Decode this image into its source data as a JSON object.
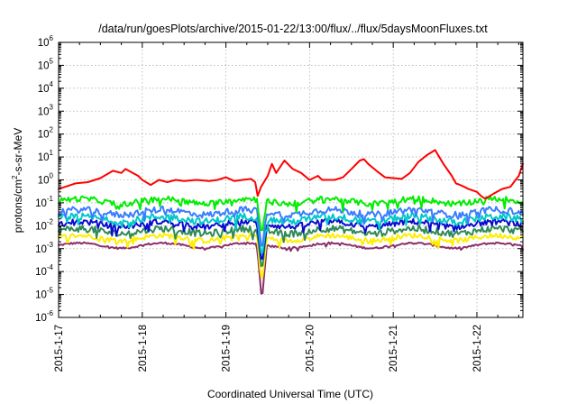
{
  "chart_data": {
    "type": "line",
    "title": "/data/run/goesPlots/archive/2015-01-22/13:00/flux/../flux/5daysMoonFluxes.txt",
    "xlabel": "Coordinated Universal Time (UTC)",
    "ylabel": "protons/cm2-s-sr-MeV",
    "ylabel_parts": {
      "base": "protons/cm",
      "exp": "2",
      "rest": "-s-sr-MeV"
    },
    "yscale": "log",
    "ylim_exponents": [
      -6,
      6
    ],
    "y_tick_exponents": [
      -6,
      -5,
      -4,
      -3,
      -2,
      -1,
      0,
      1,
      2,
      3,
      4,
      5,
      6
    ],
    "y_tick_base": "10",
    "x_tick_labels": [
      "2015-1-17",
      "2015-1-18",
      "2015-1-19",
      "2015-1-20",
      "2015-1-21",
      "2015-1-22"
    ],
    "x_tick_days": [
      0,
      1,
      2,
      3,
      4,
      5
    ],
    "xlim_days": [
      0,
      5.55
    ],
    "grid": true,
    "legend": "none",
    "series": [
      {
        "color": "#ff0000",
        "x": [
          0.0,
          0.2,
          0.35,
          0.5,
          0.65,
          0.75,
          0.8,
          0.95,
          1.0,
          1.1,
          1.2,
          1.3,
          1.4,
          1.5,
          1.65,
          1.8,
          1.9,
          2.0,
          2.1,
          2.2,
          2.3,
          2.35,
          2.38,
          2.42,
          2.5,
          2.55,
          2.6,
          2.7,
          2.8,
          2.9,
          3.0,
          3.1,
          3.15,
          3.3,
          3.4,
          3.5,
          3.6,
          3.65,
          3.7,
          3.8,
          3.9,
          4.0,
          4.1,
          4.2,
          4.3,
          4.4,
          4.5,
          4.6,
          4.7,
          4.75,
          4.8,
          4.85,
          4.9,
          5.0,
          5.05,
          5.1,
          5.2,
          5.3,
          5.4,
          5.5,
          5.55
        ],
        "y": [
          0.4,
          0.7,
          0.8,
          1.2,
          2.5,
          2.0,
          3.0,
          1.5,
          1.0,
          0.6,
          1.0,
          0.8,
          1.0,
          0.9,
          1.0,
          0.9,
          1.0,
          1.3,
          0.9,
          1.0,
          1.1,
          0.8,
          0.2,
          0.5,
          1.5,
          5.0,
          2.0,
          7.0,
          3.0,
          2.0,
          1.0,
          1.5,
          1.0,
          1.0,
          1.3,
          3.0,
          7.0,
          8.0,
          5.0,
          2.5,
          1.3,
          1.2,
          1.1,
          2.0,
          6.0,
          12.0,
          20.0,
          5.0,
          1.5,
          0.7,
          0.6,
          0.5,
          0.4,
          0.3,
          0.2,
          0.15,
          0.25,
          0.4,
          0.5,
          1.5,
          5.0
        ]
      },
      {
        "color": "#00ee00",
        "base": 0.12,
        "dip": 0.004,
        "noise": 0.25
      },
      {
        "color": "#3a7dff",
        "base": 0.04,
        "dip": 0.0008,
        "noise": 0.28
      },
      {
        "color": "#00c8c8",
        "base": 0.02,
        "dip": 0.0004,
        "noise": 0.3
      },
      {
        "color": "#0a0acf",
        "base": 0.012,
        "dip": 0.0002,
        "noise": 0.25
      },
      {
        "color": "#2e8b57",
        "base": 0.006,
        "dip": 0.0001,
        "noise": 0.3
      },
      {
        "color": "#ffee00",
        "base": 0.003,
        "dip": 3e-05,
        "noise": 0.22
      },
      {
        "color": "#8b2f6b",
        "base": 0.0014,
        "dip": 5e-06,
        "noise": 0.08
      }
    ]
  }
}
